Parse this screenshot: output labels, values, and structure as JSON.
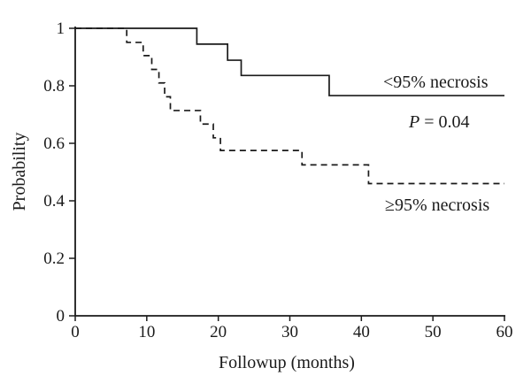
{
  "figure_title": "",
  "chart_data": {
    "type": "line",
    "subtype": "kaplan-meier-step",
    "title": "",
    "xlabel": "Followup (months)",
    "ylabel": "Probability",
    "xlim": [
      0,
      60
    ],
    "ylim": [
      0,
      1
    ],
    "grid": false,
    "spines": [
      "left",
      "bottom"
    ],
    "line_color": "#1a1a1a",
    "xticks": [
      {
        "v": 0,
        "label": "0"
      },
      {
        "v": 10,
        "label": "10"
      },
      {
        "v": 20,
        "label": "20"
      },
      {
        "v": 30,
        "label": "30"
      },
      {
        "v": 40,
        "label": "40"
      },
      {
        "v": 50,
        "label": "50"
      },
      {
        "v": 60,
        "label": "60"
      }
    ],
    "yticks": [
      {
        "v": 0,
        "label": "0"
      },
      {
        "v": 0.2,
        "label": "0.2"
      },
      {
        "v": 0.4,
        "label": "0.4"
      },
      {
        "v": 0.6,
        "label": "0.6"
      },
      {
        "v": 0.8,
        "label": "0.8"
      },
      {
        "v": 1,
        "label": "1"
      }
    ],
    "series": [
      {
        "name": "<95% necrosis",
        "style": "solid",
        "color": "#1a1a1a",
        "points": [
          [
            0,
            1.0
          ],
          [
            17,
            1.0
          ],
          [
            17,
            0.945
          ],
          [
            21.3,
            0.945
          ],
          [
            21.3,
            0.889
          ],
          [
            23.2,
            0.889
          ],
          [
            23.2,
            0.836
          ],
          [
            35.5,
            0.836
          ],
          [
            35.5,
            0.766
          ],
          [
            60,
            0.766
          ]
        ]
      },
      {
        "name": "≥95% necrosis",
        "style": "dashed",
        "color": "#1a1a1a",
        "points": [
          [
            0,
            1.0
          ],
          [
            7.2,
            1.0
          ],
          [
            7.2,
            0.951
          ],
          [
            9.5,
            0.951
          ],
          [
            9.5,
            0.905
          ],
          [
            10.7,
            0.905
          ],
          [
            10.7,
            0.857
          ],
          [
            11.7,
            0.857
          ],
          [
            11.7,
            0.81
          ],
          [
            12.5,
            0.81
          ],
          [
            12.5,
            0.762
          ],
          [
            13.3,
            0.762
          ],
          [
            13.3,
            0.714
          ],
          [
            17.5,
            0.714
          ],
          [
            17.5,
            0.667
          ],
          [
            19.3,
            0.667
          ],
          [
            19.3,
            0.619
          ],
          [
            20.3,
            0.619
          ],
          [
            20.3,
            0.575
          ],
          [
            31.7,
            0.575
          ],
          [
            31.7,
            0.525
          ],
          [
            41,
            0.525
          ],
          [
            41,
            0.46
          ],
          [
            60,
            0.46
          ]
        ]
      }
    ],
    "annotations": {
      "p_symbol": "P",
      "p_rest": " = 0.04",
      "p_value": 0.04,
      "legend_position": "inline-labels"
    }
  }
}
